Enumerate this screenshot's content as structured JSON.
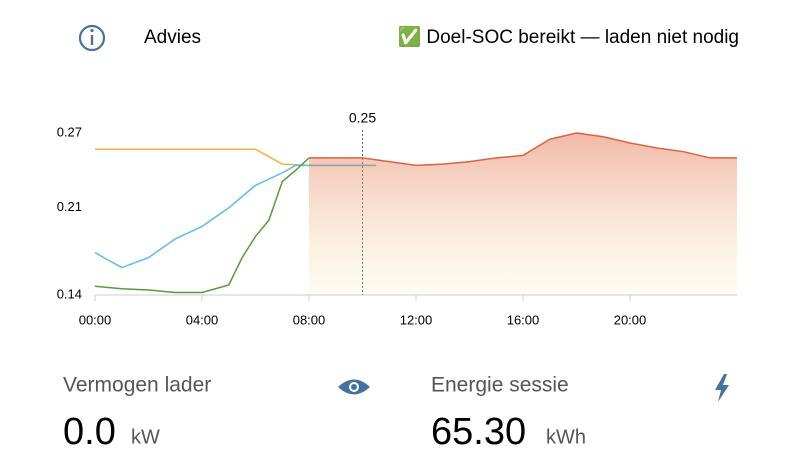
{
  "header": {
    "label": "Advies",
    "status": "✅ Doel-SOC bereikt — laden niet nodig"
  },
  "chart_data": {
    "type": "line",
    "xlim": [
      0,
      24
    ],
    "xticks": [
      {
        "value": 0,
        "label": "00:00"
      },
      {
        "value": 4,
        "label": "04:00"
      },
      {
        "value": 8,
        "label": "08:00"
      },
      {
        "value": 12,
        "label": "12:00"
      },
      {
        "value": 16,
        "label": "16:00"
      },
      {
        "value": 20,
        "label": "20:00"
      }
    ],
    "ylim": [
      0.14,
      0.27
    ],
    "yticks": [
      0.14,
      0.21,
      0.27
    ],
    "annotation": {
      "x": 10,
      "text": "0.25"
    },
    "series": [
      {
        "color": "#f0b23a",
        "x": [
          0,
          1,
          2,
          3,
          4,
          5,
          6,
          7,
          8,
          9,
          10,
          10.5
        ],
        "values": [
          0.257,
          0.257,
          0.257,
          0.257,
          0.257,
          0.257,
          0.257,
          0.245,
          0.244,
          0.244,
          0.244,
          0.244
        ]
      },
      {
        "color": "#5bbde8",
        "x": [
          0,
          0.5,
          1,
          2,
          3,
          4,
          5,
          6,
          7,
          7.5,
          8,
          10.5
        ],
        "values": [
          0.174,
          0.168,
          0.162,
          0.17,
          0.185,
          0.195,
          0.21,
          0.228,
          0.238,
          0.244,
          0.244,
          0.244
        ]
      },
      {
        "color": "#5a9a3a",
        "x": [
          0,
          1,
          2,
          3,
          4,
          5,
          5.5,
          6,
          6.5,
          7,
          7.5,
          8
        ],
        "values": [
          0.147,
          0.145,
          0.144,
          0.142,
          0.142,
          0.148,
          0.17,
          0.187,
          0.2,
          0.231,
          0.24,
          0.25
        ]
      },
      {
        "color": "#e0613e",
        "area": true,
        "x": [
          8,
          9,
          10,
          11,
          12,
          13,
          14,
          15,
          16,
          17,
          18,
          19,
          20,
          21,
          22,
          23,
          24
        ],
        "values": [
          0.25,
          0.25,
          0.25,
          0.247,
          0.244,
          0.245,
          0.247,
          0.25,
          0.252,
          0.265,
          0.27,
          0.267,
          0.262,
          0.258,
          0.255,
          0.25,
          0.25
        ]
      }
    ]
  },
  "cards": [
    {
      "title": "Vermogen lader",
      "value": "0.0",
      "unit": "kW"
    },
    {
      "title": "Energie sessie",
      "value": "65.30",
      "unit": "kWh"
    }
  ]
}
